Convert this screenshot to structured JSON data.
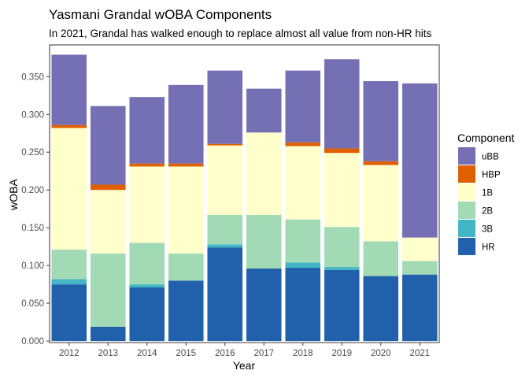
{
  "chart_data": {
    "type": "bar",
    "stacked": true,
    "title": "Yasmani Grandal wOBA Components",
    "subtitle": "In 2021, Grandal has walked enough to replace almost all value from non-HR hits",
    "xlabel": "Year",
    "ylabel": "wOBA",
    "ylim": [
      -0.002,
      0.392
    ],
    "yticks": [
      "0.000",
      "0.050",
      "0.100",
      "0.150",
      "0.200",
      "0.250",
      "0.300",
      "0.350"
    ],
    "grid": false,
    "legend_title": "Component",
    "legend_position": "right",
    "categories": [
      "2012",
      "2013",
      "2014",
      "2015",
      "2016",
      "2017",
      "2018",
      "2019",
      "2020",
      "2021"
    ],
    "series": [
      {
        "name": "HR",
        "color": "#2161ab",
        "values": [
          0.075,
          0.019,
          0.071,
          0.08,
          0.124,
          0.096,
          0.097,
          0.094,
          0.086,
          0.088
        ]
      },
      {
        "name": "3B",
        "color": "#42b6c4",
        "values": [
          0.007,
          0.0,
          0.004,
          0.0,
          0.004,
          0.0,
          0.007,
          0.004,
          0.0,
          0.0
        ]
      },
      {
        "name": "2B",
        "color": "#a1dab4",
        "values": [
          0.039,
          0.097,
          0.055,
          0.036,
          0.039,
          0.071,
          0.057,
          0.053,
          0.046,
          0.018
        ]
      },
      {
        "name": "1B",
        "color": "#ffffcc",
        "values": [
          0.161,
          0.084,
          0.101,
          0.115,
          0.092,
          0.109,
          0.097,
          0.098,
          0.101,
          0.031
        ]
      },
      {
        "name": "HBP",
        "color": "#e06000",
        "values": [
          0.004,
          0.007,
          0.004,
          0.004,
          0.002,
          0.0,
          0.005,
          0.006,
          0.005,
          0.0
        ]
      },
      {
        "name": "uBB",
        "color": "#7570b3",
        "values": [
          0.093,
          0.104,
          0.088,
          0.104,
          0.097,
          0.058,
          0.095,
          0.118,
          0.106,
          0.204
        ]
      }
    ],
    "legend_order": [
      "uBB",
      "HBP",
      "1B",
      "2B",
      "3B",
      "HR"
    ]
  }
}
